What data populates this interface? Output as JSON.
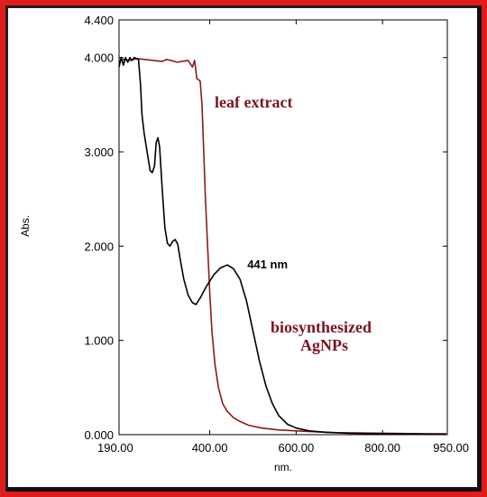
{
  "chart_data": {
    "type": "line",
    "title": "",
    "xlabel": "nm.",
    "ylabel": "Abs.",
    "xlim": [
      190,
      950
    ],
    "ylim": [
      0,
      4.4
    ],
    "x_ticks": [
      {
        "v": 190,
        "label": "190.00"
      },
      {
        "v": 400,
        "label": "400.00"
      },
      {
        "v": 600,
        "label": "600.00"
      },
      {
        "v": 800,
        "label": "800.00"
      },
      {
        "v": 950,
        "label": "950.00"
      }
    ],
    "y_ticks": [
      {
        "v": 0,
        "label": "0.000"
      },
      {
        "v": 1,
        "label": "1.000"
      },
      {
        "v": 2,
        "label": "2.000"
      },
      {
        "v": 3,
        "label": "3.000"
      },
      {
        "v": 4,
        "label": "4.000"
      },
      {
        "v": 4.4,
        "label": "4.400"
      }
    ],
    "grid": false,
    "series": [
      {
        "name": "leaf extract",
        "color": "#8b1a1a",
        "points": [
          [
            190,
            3.97
          ],
          [
            200,
            3.98
          ],
          [
            215,
            3.97
          ],
          [
            230,
            3.99
          ],
          [
            250,
            3.98
          ],
          [
            270,
            3.97
          ],
          [
            290,
            3.96
          ],
          [
            300,
            3.98
          ],
          [
            310,
            3.97
          ],
          [
            325,
            3.95
          ],
          [
            335,
            3.96
          ],
          [
            350,
            3.97
          ],
          [
            360,
            3.9
          ],
          [
            365,
            3.97
          ],
          [
            370,
            3.78
          ],
          [
            378,
            3.75
          ],
          [
            382,
            3.5
          ],
          [
            386,
            3.0
          ],
          [
            390,
            2.5
          ],
          [
            395,
            2.0
          ],
          [
            400,
            1.5
          ],
          [
            405,
            1.1
          ],
          [
            412,
            0.75
          ],
          [
            420,
            0.5
          ],
          [
            430,
            0.33
          ],
          [
            440,
            0.25
          ],
          [
            455,
            0.18
          ],
          [
            470,
            0.14
          ],
          [
            490,
            0.1
          ],
          [
            520,
            0.07
          ],
          [
            560,
            0.05
          ],
          [
            600,
            0.04
          ],
          [
            650,
            0.03
          ],
          [
            700,
            0.02
          ],
          [
            800,
            0.015
          ],
          [
            900,
            0.01
          ],
          [
            960,
            0.01
          ]
        ]
      },
      {
        "name": "biosynthesized AgNPs",
        "color": "#000000",
        "points": [
          [
            190,
            3.9
          ],
          [
            195,
            4.0
          ],
          [
            200,
            3.92
          ],
          [
            205,
            4.0
          ],
          [
            210,
            3.95
          ],
          [
            215,
            4.0
          ],
          [
            220,
            3.97
          ],
          [
            225,
            4.0
          ],
          [
            235,
            3.98
          ],
          [
            240,
            3.7
          ],
          [
            243,
            3.4
          ],
          [
            248,
            3.2
          ],
          [
            255,
            3.0
          ],
          [
            262,
            2.8
          ],
          [
            267,
            2.78
          ],
          [
            272,
            2.85
          ],
          [
            276,
            3.1
          ],
          [
            280,
            3.15
          ],
          [
            284,
            3.05
          ],
          [
            290,
            2.6
          ],
          [
            296,
            2.2
          ],
          [
            302,
            2.03
          ],
          [
            308,
            2.0
          ],
          [
            314,
            2.05
          ],
          [
            320,
            2.07
          ],
          [
            326,
            2.02
          ],
          [
            332,
            1.85
          ],
          [
            340,
            1.65
          ],
          [
            350,
            1.48
          ],
          [
            360,
            1.4
          ],
          [
            368,
            1.38
          ],
          [
            378,
            1.45
          ],
          [
            392,
            1.57
          ],
          [
            410,
            1.7
          ],
          [
            425,
            1.77
          ],
          [
            441,
            1.8
          ],
          [
            455,
            1.76
          ],
          [
            470,
            1.65
          ],
          [
            485,
            1.42
          ],
          [
            500,
            1.1
          ],
          [
            515,
            0.78
          ],
          [
            530,
            0.52
          ],
          [
            545,
            0.33
          ],
          [
            560,
            0.2
          ],
          [
            580,
            0.11
          ],
          [
            600,
            0.07
          ],
          [
            630,
            0.04
          ],
          [
            670,
            0.025
          ],
          [
            720,
            0.015
          ],
          [
            800,
            0.01
          ],
          [
            880,
            0.008
          ],
          [
            960,
            0.005
          ]
        ]
      }
    ],
    "annotations": [
      {
        "text": "441 nm",
        "x": 441,
        "y": 1.8
      }
    ]
  },
  "labels": {
    "leaf_extract": "leaf extract",
    "agnps_line1": "biosynthesized",
    "agnps_line2": "AgNPs"
  }
}
